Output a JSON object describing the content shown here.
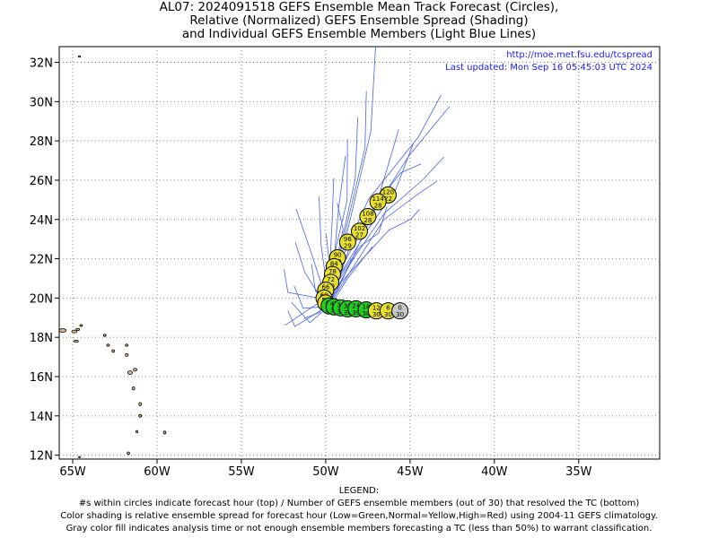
{
  "title_lines": [
    "AL07: 2024091518 GEFS Ensemble Mean Track Forecast (Circles),",
    "Relative (Normalized) GEFS Ensemble Spread (Shading)",
    "and Individual GEFS Ensemble Members (Light Blue Lines)"
  ],
  "annotations": {
    "url": "http://moe.met.fsu.edu/tcspread",
    "updated": "Last updated: Mon Sep 16 05:45:03 UTC 2024"
  },
  "legend": {
    "heading": "LEGEND:",
    "lines": [
      "#s within circles indicate forecast hour (top) / Number of GEFS ensemble members (out of 30) that resolved the TC (bottom)",
      "Color shading is relative ensemble spread for forecast hour (Low=Green,Normal=Yellow,High=Red) using 2004-11 GEFS climatology.",
      "Gray color fill indicates analysis time or not enough ensemble members forecasting a TC (less than 50%) to warrant classification."
    ]
  },
  "axes": {
    "lon_ticks": [
      "65W",
      "60W",
      "55W",
      "50W",
      "45W",
      "40W",
      "35W"
    ],
    "lat_ticks": [
      "12N",
      "14N",
      "16N",
      "18N",
      "20N",
      "22N",
      "24N",
      "26N",
      "28N",
      "30N",
      "32N"
    ],
    "lon_range": [
      -65.8,
      -30.2
    ],
    "lat_range": [
      11.8,
      32.8
    ],
    "grid": "dotted"
  },
  "colors": {
    "member_track": "#4a63e6",
    "low_spread": "#22cc22",
    "normal_spread": "#e8e030",
    "analysis": "#c8c8c8",
    "land": "#e0b48c",
    "annotation_text": "#1a1aff"
  },
  "mean_track": [
    {
      "hour": "0",
      "members": "30",
      "lon": -45.6,
      "lat": 19.35,
      "shade": "gray"
    },
    {
      "hour": "6",
      "members": "30",
      "lon": -46.3,
      "lat": 19.35,
      "shade": "yellow"
    },
    {
      "hour": "12",
      "members": "30",
      "lon": -47.0,
      "lat": 19.35,
      "shade": "yellow"
    },
    {
      "hour": "18",
      "members": "30",
      "lon": -47.6,
      "lat": 19.4,
      "shade": "green"
    },
    {
      "hour": "24",
      "members": "30",
      "lon": -48.2,
      "lat": 19.45,
      "shade": "green"
    },
    {
      "hour": "30",
      "members": "30",
      "lon": -48.7,
      "lat": 19.45,
      "shade": "green"
    },
    {
      "hour": "36",
      "members": "30",
      "lon": -49.1,
      "lat": 19.5,
      "shade": "green"
    },
    {
      "hour": "42",
      "members": "30",
      "lon": -49.5,
      "lat": 19.55,
      "shade": "green"
    },
    {
      "hour": "48",
      "members": "30",
      "lon": -49.8,
      "lat": 19.6,
      "shade": "green"
    },
    {
      "hour": "54",
      "members": "30",
      "lon": -50.0,
      "lat": 19.75,
      "shade": "yellow"
    },
    {
      "hour": "60",
      "members": "30",
      "lon": -50.1,
      "lat": 20.0,
      "shade": "yellow"
    },
    {
      "hour": "66",
      "members": "30",
      "lon": -50.0,
      "lat": 20.4,
      "shade": "yellow"
    },
    {
      "hour": "72",
      "members": "30",
      "lon": -49.7,
      "lat": 20.8,
      "shade": "yellow"
    },
    {
      "hour": "78",
      "members": "30",
      "lon": -49.6,
      "lat": 21.2,
      "shade": "yellow"
    },
    {
      "hour": "84",
      "members": "30",
      "lon": -49.5,
      "lat": 21.6,
      "shade": "yellow"
    },
    {
      "hour": "90",
      "members": "30",
      "lon": -49.3,
      "lat": 22.05,
      "shade": "yellow"
    },
    {
      "hour": "96",
      "members": "29",
      "lon": -48.7,
      "lat": 22.85,
      "shade": "yellow"
    },
    {
      "hour": "102",
      "members": "27",
      "lon": -48.0,
      "lat": 23.4,
      "shade": "yellow"
    },
    {
      "hour": "108",
      "members": "28",
      "lon": -47.5,
      "lat": 24.15,
      "shade": "yellow"
    },
    {
      "hour": "114",
      "members": "28",
      "lon": -46.9,
      "lat": 24.9,
      "shade": "yellow"
    },
    {
      "hour": "120",
      "members": "22",
      "lon": -46.3,
      "lat": 25.25,
      "shade": "yellow"
    }
  ]
}
